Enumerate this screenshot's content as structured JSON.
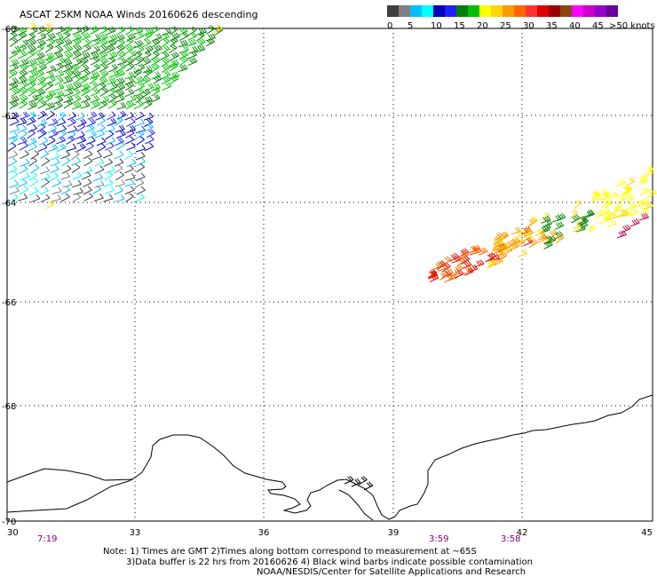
{
  "title": "ASCAT 25KM NOAA Winds 20160626 descending",
  "legend": {
    "units": ">50 knots",
    "ticks": [
      "0",
      "5",
      "10",
      "15",
      "20",
      "25",
      "30",
      "35",
      "40",
      "45"
    ],
    "bins": [
      {
        "range": "0-5",
        "colors": [
          "#404040",
          "#808080"
        ]
      },
      {
        "range": "5-10",
        "colors": [
          "#00bfff",
          "#00ffff"
        ]
      },
      {
        "range": "10-15",
        "colors": [
          "#0000c0",
          "#2020ff"
        ]
      },
      {
        "range": "15-20",
        "colors": [
          "#008000",
          "#00c000"
        ]
      },
      {
        "range": "20-25",
        "colors": [
          "#ffff00",
          "#ffd700"
        ]
      },
      {
        "range": "25-30",
        "colors": [
          "#ff9900",
          "#ff6600"
        ]
      },
      {
        "range": "30-35",
        "colors": [
          "#ff3333",
          "#e00000"
        ]
      },
      {
        "range": "35-40",
        "colors": [
          "#a00000",
          "#8b4513"
        ]
      },
      {
        "range": "40-45",
        "colors": [
          "#ff00ff",
          "#cc00cc"
        ]
      },
      {
        "range": "45-50",
        "colors": [
          "#9900cc",
          "#660099"
        ]
      }
    ]
  },
  "map": {
    "lon_ticks": [
      "30",
      "33",
      "36",
      "39",
      "42",
      "45"
    ],
    "lat_ticks": [
      "-60",
      "-62",
      "-64",
      "-66",
      "-68",
      "-70"
    ],
    "lon_range": [
      30,
      45
    ],
    "lat_range": [
      -70,
      -60
    ]
  },
  "pass_times": [
    "7:19",
    "3:59",
    "3:58"
  ],
  "notes": {
    "line1": "Note: 1) Times are GMT 2)Times along bottom correspond to measurement at ~65S",
    "line2": "3)Data buffer is 22 hrs from 20160626 4) Black wind barbs indicate possible contamination",
    "line3": "NOAA/NESDIS/Center for Satellite Applications and Research"
  }
}
